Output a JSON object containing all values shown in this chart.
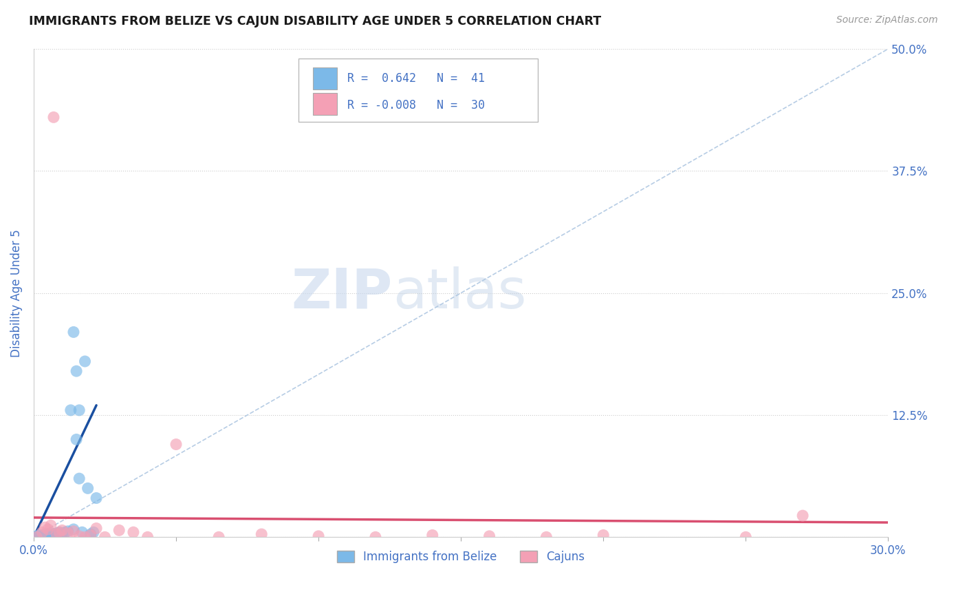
{
  "title": "IMMIGRANTS FROM BELIZE VS CAJUN DISABILITY AGE UNDER 5 CORRELATION CHART",
  "source": "Source: ZipAtlas.com",
  "ylabel": "Disability Age Under 5",
  "xlim": [
    0.0,
    0.3
  ],
  "ylim": [
    0.0,
    0.5
  ],
  "blue_color": "#7cb9e8",
  "pink_color": "#f4a0b5",
  "blue_line_color": "#1a4fa0",
  "pink_line_color": "#d94f70",
  "diag_line_color": "#aac4e0",
  "text_color": "#4472C4",
  "background_color": "#ffffff",
  "watermark_zip": "ZIP",
  "watermark_atlas": "atlas",
  "blue_scatter_x": [
    0.0,
    0.001,
    0.001,
    0.001,
    0.002,
    0.002,
    0.002,
    0.003,
    0.003,
    0.003,
    0.004,
    0.004,
    0.004,
    0.005,
    0.005,
    0.005,
    0.006,
    0.006,
    0.007,
    0.007,
    0.008,
    0.008,
    0.009,
    0.009,
    0.01,
    0.01,
    0.011,
    0.012,
    0.013,
    0.014,
    0.015,
    0.016,
    0.017,
    0.018,
    0.019,
    0.02,
    0.021,
    0.022,
    0.014,
    0.015,
    0.016
  ],
  "blue_scatter_y": [
    0.0,
    0.0,
    0.001,
    0.0,
    0.001,
    0.0,
    0.002,
    0.001,
    0.0,
    0.002,
    0.001,
    0.003,
    0.0,
    0.002,
    0.001,
    0.003,
    0.002,
    0.004,
    0.003,
    0.001,
    0.004,
    0.002,
    0.003,
    0.005,
    0.004,
    0.003,
    0.005,
    0.006,
    0.13,
    0.008,
    0.1,
    0.06,
    0.005,
    0.18,
    0.05,
    0.003,
    0.005,
    0.04,
    0.21,
    0.17,
    0.13
  ],
  "pink_scatter_x": [
    0.007,
    0.001,
    0.003,
    0.004,
    0.005,
    0.006,
    0.008,
    0.009,
    0.01,
    0.012,
    0.014,
    0.016,
    0.018,
    0.02,
    0.022,
    0.025,
    0.03,
    0.035,
    0.04,
    0.05,
    0.065,
    0.08,
    0.1,
    0.12,
    0.14,
    0.16,
    0.18,
    0.2,
    0.25,
    0.27
  ],
  "pink_scatter_y": [
    0.43,
    0.0,
    0.005,
    0.01,
    0.008,
    0.012,
    0.003,
    0.005,
    0.007,
    0.004,
    0.006,
    0.001,
    0.0,
    0.002,
    0.009,
    0.0,
    0.007,
    0.005,
    0.0,
    0.095,
    0.0,
    0.003,
    0.001,
    0.0,
    0.002,
    0.001,
    0.0,
    0.002,
    0.0,
    0.022
  ],
  "blue_trend_x": [
    0.0,
    0.022
  ],
  "blue_trend_y": [
    0.0,
    0.135
  ],
  "pink_trend_x": [
    0.0,
    0.3
  ],
  "pink_trend_y": [
    0.02,
    0.015
  ]
}
